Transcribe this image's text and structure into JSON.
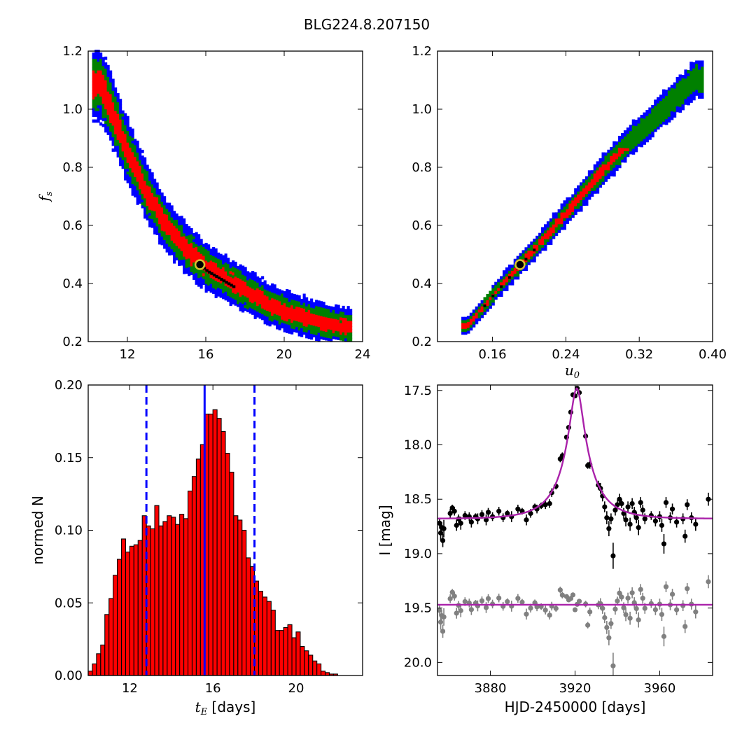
{
  "figure": {
    "title": "BLG224.8.207150"
  },
  "chart_data": [
    {
      "type": "heatmap",
      "panel": "fs-vs-tE",
      "xlim": [
        10,
        24
      ],
      "ylim": [
        0.2,
        1.2
      ],
      "xticks": [
        "12",
        "16",
        "20",
        "24"
      ],
      "yticks": [
        "0.2",
        "0.4",
        "0.6",
        "0.8",
        "1.0",
        "1.2"
      ],
      "xlabel": "",
      "ylabel": "f_s",
      "colors": {
        "outer": "#0000ff",
        "middle": "#008000",
        "inner": "#ff0000",
        "core": "#000000"
      },
      "ridge": [
        [
          10.6,
          1.08
        ],
        [
          11.2,
          0.98
        ],
        [
          12.0,
          0.84
        ],
        [
          13.0,
          0.7
        ],
        [
          14.0,
          0.59
        ],
        [
          15.0,
          0.51
        ],
        [
          16.0,
          0.45
        ],
        [
          17.0,
          0.41
        ],
        [
          18.0,
          0.37
        ],
        [
          19.0,
          0.33
        ],
        [
          20.0,
          0.3
        ],
        [
          21.0,
          0.28
        ],
        [
          22.0,
          0.26
        ],
        [
          23.0,
          0.245
        ]
      ],
      "best_fit": {
        "x": 15.7,
        "y": 0.465
      }
    },
    {
      "type": "heatmap",
      "panel": "fs-vs-u0",
      "xlim": [
        0.1,
        0.4
      ],
      "ylim": [
        0.2,
        1.2
      ],
      "xticks": [
        "0.16",
        "0.24",
        "0.32",
        "0.40"
      ],
      "yticks": [
        "0.2",
        "0.4",
        "0.6",
        "0.8",
        "1.0",
        "1.2"
      ],
      "xlabel": "u_0",
      "ylabel": "",
      "colors": {
        "outer": "#0000ff",
        "middle": "#008000",
        "inner": "#ff0000",
        "core": "#000000"
      },
      "ridge": [
        [
          0.131,
          0.25
        ],
        [
          0.16,
          0.36
        ],
        [
          0.19,
          0.465
        ],
        [
          0.22,
          0.57
        ],
        [
          0.25,
          0.68
        ],
        [
          0.28,
          0.79
        ],
        [
          0.31,
          0.89
        ],
        [
          0.34,
          0.98
        ],
        [
          0.37,
          1.07
        ],
        [
          0.38,
          1.1
        ]
      ],
      "best_fit": {
        "x": 0.19,
        "y": 0.465
      }
    },
    {
      "type": "bar",
      "panel": "tE-histogram",
      "xlim": [
        10.0,
        23.2
      ],
      "ylim": [
        0.0,
        0.2
      ],
      "xticks": [
        "12",
        "16",
        "20"
      ],
      "yticks": [
        "0.00",
        "0.05",
        "0.10",
        "0.15",
        "0.20"
      ],
      "xlabel": "t_E [days]",
      "ylabel": "normed N",
      "bar_color": "#ff0000",
      "bin_start": 10.0,
      "bin_width": 0.2,
      "values": [
        0.003,
        0.008,
        0.015,
        0.021,
        0.042,
        0.053,
        0.069,
        0.08,
        0.094,
        0.085,
        0.089,
        0.09,
        0.093,
        0.11,
        0.103,
        0.101,
        0.117,
        0.103,
        0.106,
        0.11,
        0.109,
        0.104,
        0.111,
        0.108,
        0.127,
        0.137,
        0.149,
        0.159,
        0.18,
        0.18,
        0.183,
        0.177,
        0.168,
        0.153,
        0.14,
        0.11,
        0.107,
        0.1,
        0.081,
        0.075,
        0.065,
        0.058,
        0.054,
        0.051,
        0.045,
        0.031,
        0.031,
        0.033,
        0.035,
        0.026,
        0.03,
        0.02,
        0.017,
        0.014,
        0.01,
        0.008,
        0.003,
        0.002,
        0.001,
        0.001
      ],
      "vlines": {
        "median": 15.6,
        "lower": 12.8,
        "upper": 18.0
      },
      "line_color": "#0000ff"
    },
    {
      "type": "scatter",
      "panel": "light-curve",
      "xlim": [
        3855,
        3985
      ],
      "ylim": [
        20.12,
        17.45
      ],
      "xticks": [
        "3880",
        "3920",
        "3960"
      ],
      "yticks": [
        "17.5",
        "18.0",
        "18.5",
        "19.0",
        "19.5",
        "20.0"
      ],
      "xlabel": "HJD-2450000 [days]",
      "ylabel": "I [mag]",
      "model": {
        "t0": 3920.8,
        "u0": 0.19,
        "tE": 15.6,
        "fs": 0.465,
        "baseline": 18.68,
        "residual_offset": 19.47,
        "color": "#aa22aa"
      },
      "data_color": "#000000",
      "residual_color": "#808080",
      "points": [
        [
          3856,
          18.72,
          0.05
        ],
        [
          3856.5,
          18.81,
          0.07
        ],
        [
          3857,
          18.76,
          0.05
        ],
        [
          3857.5,
          18.88,
          0.06
        ],
        [
          3858,
          18.77,
          0.08
        ],
        [
          3861,
          18.63,
          0.04
        ],
        [
          3862,
          18.58,
          0.03
        ],
        [
          3863,
          18.61,
          0.04
        ],
        [
          3864,
          18.74,
          0.05
        ],
        [
          3865,
          18.68,
          0.04
        ],
        [
          3866,
          18.72,
          0.06
        ],
        [
          3868,
          18.65,
          0.04
        ],
        [
          3870,
          18.66,
          0.04
        ],
        [
          3871,
          18.71,
          0.05
        ],
        [
          3873,
          18.66,
          0.03
        ],
        [
          3874,
          18.68,
          0.05
        ],
        [
          3876,
          18.64,
          0.04
        ],
        [
          3878,
          18.69,
          0.05
        ],
        [
          3879,
          18.62,
          0.04
        ],
        [
          3881,
          18.66,
          0.04
        ],
        [
          3884,
          18.61,
          0.04
        ],
        [
          3886,
          18.67,
          0.04
        ],
        [
          3888,
          18.63,
          0.03
        ],
        [
          3890,
          18.66,
          0.05
        ],
        [
          3893,
          18.59,
          0.04
        ],
        [
          3895,
          18.61,
          0.03
        ],
        [
          3897,
          18.69,
          0.05
        ],
        [
          3899,
          18.63,
          0.04
        ],
        [
          3901,
          18.57,
          0.03
        ],
        [
          3902,
          18.59,
          0.04
        ],
        [
          3904,
          18.56,
          0.03
        ],
        [
          3906,
          18.55,
          0.04
        ],
        [
          3908,
          18.54,
          0.04
        ],
        [
          3909,
          18.44,
          0.04
        ],
        [
          3911,
          18.38,
          0.03
        ],
        [
          3913,
          18.13,
          0.03
        ],
        [
          3914,
          18.1,
          0.03
        ],
        [
          3916,
          17.93,
          0.02
        ],
        [
          3917,
          17.84,
          0.02
        ],
        [
          3918,
          17.7,
          0.02
        ],
        [
          3919,
          17.54,
          0.02
        ],
        [
          3920,
          17.55,
          0.02
        ],
        [
          3921,
          17.48,
          0.02
        ],
        [
          3922,
          17.52,
          0.02
        ],
        [
          3925,
          17.92,
          0.03
        ],
        [
          3926,
          18.19,
          0.03
        ],
        [
          3927,
          18.18,
          0.04
        ],
        [
          3931,
          18.37,
          0.04
        ],
        [
          3932,
          18.4,
          0.05
        ],
        [
          3933,
          18.47,
          0.05
        ],
        [
          3934,
          18.57,
          0.05
        ],
        [
          3935,
          18.67,
          0.06
        ],
        [
          3936,
          18.77,
          0.07
        ],
        [
          3937,
          18.68,
          0.05
        ],
        [
          3938,
          19.02,
          0.12
        ],
        [
          3939,
          18.6,
          0.05
        ],
        [
          3940,
          18.55,
          0.04
        ],
        [
          3941,
          18.5,
          0.05
        ],
        [
          3942,
          18.54,
          0.04
        ],
        [
          3943,
          18.63,
          0.05
        ],
        [
          3944,
          18.69,
          0.06
        ],
        [
          3945,
          18.57,
          0.05
        ],
        [
          3946,
          18.73,
          0.06
        ],
        [
          3947,
          18.54,
          0.05
        ],
        [
          3948,
          18.62,
          0.05
        ],
        [
          3949,
          18.67,
          0.05
        ],
        [
          3950,
          18.76,
          0.07
        ],
        [
          3951,
          18.53,
          0.05
        ],
        [
          3952,
          18.6,
          0.05
        ],
        [
          3953,
          18.68,
          0.05
        ],
        [
          3956,
          18.65,
          0.04
        ],
        [
          3958,
          18.7,
          0.05
        ],
        [
          3960,
          18.66,
          0.05
        ],
        [
          3961,
          18.74,
          0.06
        ],
        [
          3962,
          18.91,
          0.09
        ],
        [
          3963,
          18.53,
          0.05
        ],
        [
          3965,
          18.67,
          0.05
        ],
        [
          3966,
          18.59,
          0.05
        ],
        [
          3968,
          18.71,
          0.05
        ],
        [
          3971,
          18.68,
          0.05
        ],
        [
          3972,
          18.84,
          0.06
        ],
        [
          3973,
          18.55,
          0.05
        ],
        [
          3975,
          18.67,
          0.05
        ],
        [
          3977,
          18.73,
          0.06
        ],
        [
          3983,
          18.5,
          0.06
        ]
      ]
    }
  ]
}
